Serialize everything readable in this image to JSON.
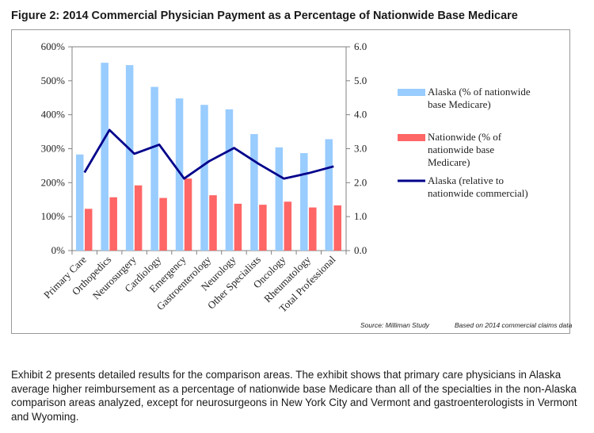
{
  "figure_title": "Figure 2: 2014 Commercial Physician Payment as a Percentage of Nationwide Base Medicare",
  "chart_data": {
    "type": "bar",
    "categories": [
      "Primary Care",
      "Orthopedics",
      "Neurosurgery",
      "Cardiology",
      "Emergency",
      "Gastroenterology",
      "Neurology",
      "Other Specialists",
      "Oncology",
      "Rheumatology",
      "Total Professional"
    ],
    "series": [
      {
        "name": "Alaska (% of nationwide base Medicare)",
        "type": "bar",
        "axis": "left",
        "color": "#99ccff",
        "values": [
          283,
          553,
          546,
          482,
          448,
          429,
          416,
          343,
          304,
          287,
          328
        ]
      },
      {
        "name": "Nationwide (% of nationwide base Medicare)",
        "type": "bar",
        "axis": "left",
        "color": "#ff6666",
        "values": [
          123,
          157,
          192,
          155,
          212,
          163,
          138,
          135,
          144,
          127,
          133
        ]
      },
      {
        "name": "Alaska (relative to nationwide commercial)",
        "type": "line",
        "axis": "right",
        "color": "#00008b",
        "values": [
          2.3,
          3.55,
          2.85,
          3.12,
          2.12,
          2.63,
          3.02,
          2.55,
          2.12,
          2.28,
          2.48
        ]
      }
    ],
    "left_axis": {
      "min": 0,
      "max": 600,
      "step": 100,
      "tick_labels": [
        "0%",
        "100%",
        "200%",
        "300%",
        "400%",
        "500%",
        "600%"
      ]
    },
    "right_axis": {
      "min": 0,
      "max": 6,
      "step": 1,
      "tick_labels": [
        "0.0",
        "1.0",
        "2.0",
        "3.0",
        "4.0",
        "5.0",
        "6.0"
      ]
    },
    "legend": {
      "position": "right",
      "entries": [
        {
          "lines": [
            "Alaska (% of nationwide",
            "base Medicare)"
          ]
        },
        {
          "lines": [
            "Nationwide (% of",
            "nationwide base",
            "Medicare)"
          ]
        },
        {
          "lines": [
            "Alaska (relative to",
            "nationwide commercial)"
          ]
        }
      ]
    },
    "source_note": "Source: Milliman Study",
    "data_note": "Based on 2014 commercial claims data",
    "grid": false
  },
  "body_text": "Exhibit 2 presents detailed results for the comparison areas. The exhibit shows that primary care physicians in Alaska average higher reimbursement as a percentage of nationwide base Medicare than all of the specialties in the non-Alaska comparison areas analyzed, except for neurosurgeons in New York City and Vermont and gastroenterologists in Vermont and Wyoming."
}
